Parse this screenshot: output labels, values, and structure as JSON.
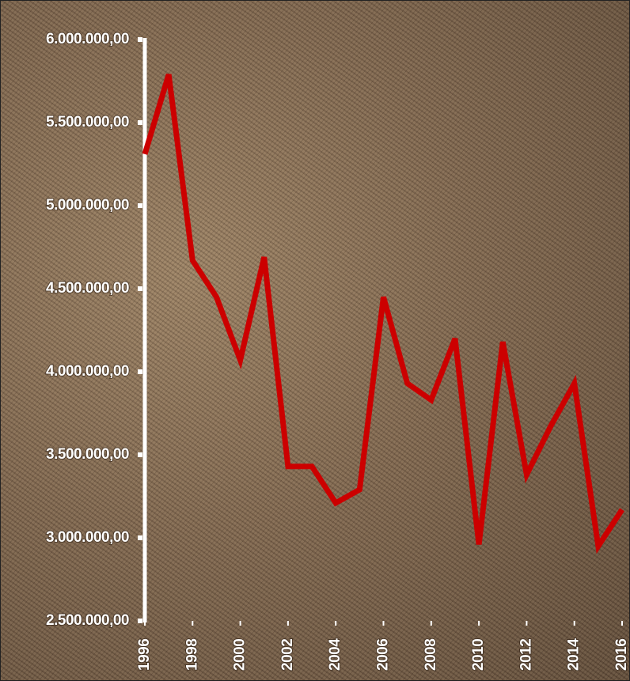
{
  "chart_data": {
    "type": "line",
    "x": [
      1996,
      1997,
      1998,
      1999,
      2000,
      2001,
      2002,
      2003,
      2004,
      2005,
      2006,
      2007,
      2008,
      2009,
      2010,
      2011,
      2012,
      2013,
      2014,
      2015,
      2016
    ],
    "values": [
      5310000,
      5790000,
      4670000,
      4450000,
      4070000,
      4690000,
      3430000,
      3430000,
      3210000,
      3290000,
      4450000,
      3930000,
      3830000,
      4200000,
      2960000,
      4180000,
      3380000,
      3670000,
      3930000,
      2950000,
      3170000
    ],
    "color": "#cc0000",
    "xlim": [
      1996,
      2016
    ],
    "xticks": [
      1996,
      1998,
      2000,
      2002,
      2004,
      2006,
      2008,
      2010,
      2012,
      2014,
      2016
    ],
    "ylim": [
      2500000,
      6000000
    ],
    "yticks": [
      {
        "value": 2500000,
        "label": "2.500.000,00"
      },
      {
        "value": 3000000,
        "label": "3.000.000,00"
      },
      {
        "value": 3500000,
        "label": "3.500.000,00"
      },
      {
        "value": 4000000,
        "label": "4.000.000,00"
      },
      {
        "value": 4500000,
        "label": "4.500.000,00"
      },
      {
        "value": 5000000,
        "label": "5.000.000,00"
      },
      {
        "value": 5500000,
        "label": "5.500.000,00"
      },
      {
        "value": 6000000,
        "label": "6.000.000,00"
      }
    ]
  }
}
